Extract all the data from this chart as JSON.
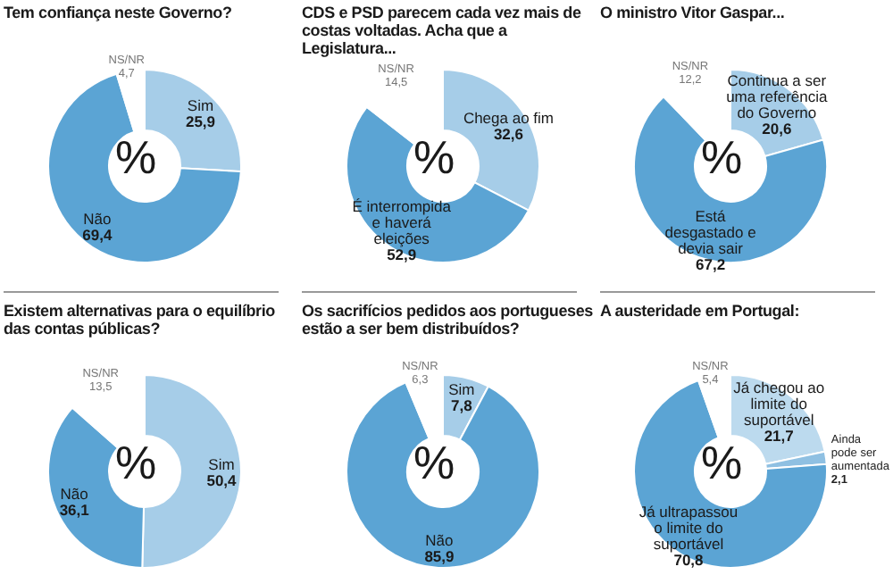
{
  "chart_data": [
    {
      "type": "donut",
      "title": "Tem confiança neste Governo?",
      "categories": [
        "Sim",
        "Não",
        "NS/NR"
      ],
      "values": [
        25.9,
        69.4,
        4.7
      ],
      "value_labels": [
        "25,9",
        "69,4",
        "4,7"
      ],
      "colors": [
        "#a6cde8",
        "#5ba4d4",
        "#ffffff"
      ],
      "annotations": [
        "%"
      ]
    },
    {
      "type": "donut",
      "title": "CDS e PSD parecem cada vez mais de costas voltadas. Acha que a Legislatura...",
      "categories": [
        "Chega ao fim",
        "É interrompida e haverá eleições",
        "NS/NR"
      ],
      "values": [
        32.6,
        52.9,
        14.5
      ],
      "value_labels": [
        "32,6",
        "52,9",
        "14,5"
      ],
      "colors": [
        "#a6cde8",
        "#5ba4d4",
        "#ffffff"
      ],
      "annotations": [
        "%"
      ]
    },
    {
      "type": "donut",
      "title": "O ministro Vitor Gaspar...",
      "categories": [
        "Continua a ser uma referência do Governo",
        "Está desgastado e devia sair",
        "NS/NR"
      ],
      "values": [
        20.6,
        67.2,
        12.2
      ],
      "value_labels": [
        "20,6",
        "67,2",
        "12,2"
      ],
      "colors": [
        "#a6cde8",
        "#5ba4d4",
        "#ffffff"
      ],
      "annotations": [
        "%"
      ]
    },
    {
      "type": "donut",
      "title": "Existem  alternativas para o equilíbrio das contas públicas?",
      "categories": [
        "Sim",
        "Não",
        "NS/NR"
      ],
      "values": [
        50.4,
        36.1,
        13.5
      ],
      "value_labels": [
        "50,4",
        "36,1",
        "13,5"
      ],
      "colors": [
        "#a6cde8",
        "#5ba4d4",
        "#ffffff"
      ],
      "annotations": [
        "%"
      ]
    },
    {
      "type": "donut",
      "title": "Os sacrifícios pedidos aos portugueses estão a ser bem distribuídos?",
      "categories": [
        "Sim",
        "Não",
        "NS/NR"
      ],
      "values": [
        7.8,
        85.9,
        6.3
      ],
      "value_labels": [
        "7,8",
        "85,9",
        "6,3"
      ],
      "colors": [
        "#a6cde8",
        "#5ba4d4",
        "#ffffff"
      ],
      "annotations": [
        "%"
      ]
    },
    {
      "type": "donut",
      "title": "A austeridade em Portugal:",
      "categories": [
        "Já chegou ao limite do suportável",
        "Ainda pode ser aumentada",
        "Já ultrapassou o limite do suportável",
        "NS/NR"
      ],
      "values": [
        21.7,
        2.1,
        70.8,
        5.4
      ],
      "value_labels": [
        "21,7",
        "2,1",
        "70,8",
        "5,4"
      ],
      "colors": [
        "#bcdaee",
        "#8fc0e2",
        "#5ba4d4",
        "#ffffff"
      ],
      "annotations": [
        "%"
      ]
    }
  ]
}
